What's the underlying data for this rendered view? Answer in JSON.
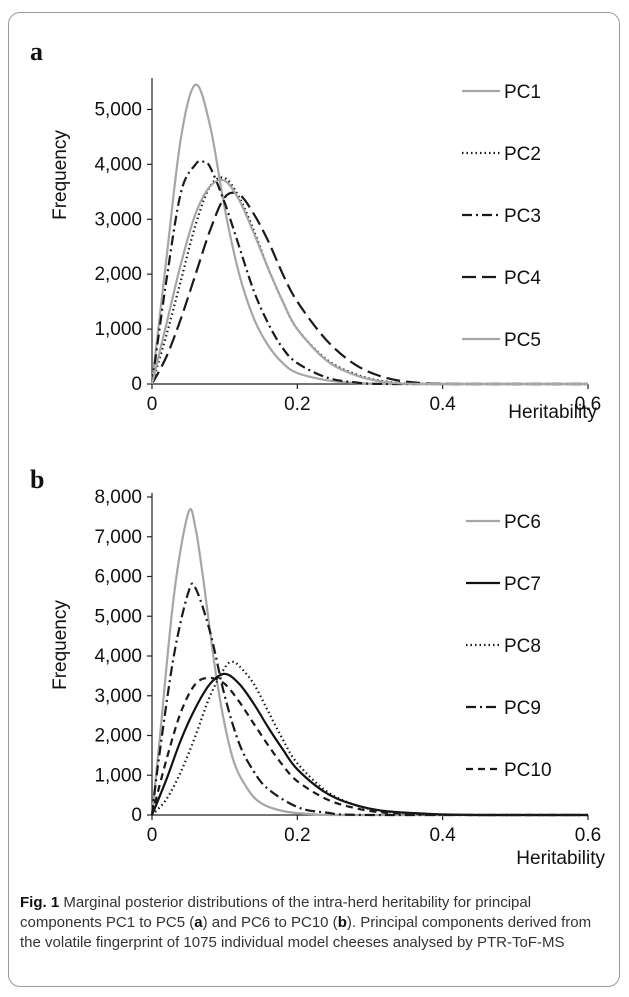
{
  "chart_data": [
    {
      "type": "line",
      "panel_label": "a",
      "xlabel": "Heritability",
      "ylabel": "Frequency",
      "xlim": [
        0,
        0.6
      ],
      "ylim": [
        0,
        5500
      ],
      "x_ticks": [
        "0",
        "0.2",
        "0.4",
        "0.6"
      ],
      "y_ticks": [
        "0",
        "1,000",
        "2,000",
        "3,000",
        "4,000",
        "5,000"
      ],
      "legend_position": "right",
      "series": [
        {
          "name": "PC1",
          "color": "#a6a6a6",
          "dash": "solid",
          "x": [
            0,
            0.02,
            0.04,
            0.06,
            0.08,
            0.1,
            0.12,
            0.14,
            0.16,
            0.18,
            0.2,
            0.24,
            0.28,
            0.35,
            0.6
          ],
          "y": [
            0,
            2300,
            4500,
            5450,
            4700,
            3200,
            2000,
            1200,
            700,
            380,
            200,
            70,
            20,
            0,
            0
          ]
        },
        {
          "name": "PC2",
          "color": "#1a1a1a",
          "dash": "dotted",
          "x": [
            0,
            0.02,
            0.04,
            0.06,
            0.08,
            0.1,
            0.12,
            0.14,
            0.16,
            0.18,
            0.2,
            0.24,
            0.28,
            0.32,
            0.38,
            0.6
          ],
          "y": [
            0,
            900,
            1900,
            2900,
            3600,
            3750,
            3400,
            2800,
            2100,
            1500,
            1000,
            450,
            180,
            50,
            0,
            0
          ]
        },
        {
          "name": "PC3",
          "color": "#1a1a1a",
          "dash": "dashdot",
          "x": [
            0,
            0.02,
            0.04,
            0.06,
            0.07,
            0.08,
            0.1,
            0.12,
            0.14,
            0.16,
            0.18,
            0.2,
            0.24,
            0.28,
            0.33,
            0.6
          ],
          "y": [
            0,
            1900,
            3500,
            4000,
            4050,
            3950,
            3300,
            2500,
            1700,
            1100,
            650,
            380,
            120,
            30,
            0,
            0
          ]
        },
        {
          "name": "PC4",
          "color": "#1a1a1a",
          "dash": "longdash",
          "x": [
            0,
            0.02,
            0.04,
            0.06,
            0.08,
            0.1,
            0.12,
            0.14,
            0.16,
            0.18,
            0.2,
            0.24,
            0.28,
            0.32,
            0.36,
            0.42,
            0.6
          ],
          "y": [
            0,
            500,
            1200,
            2000,
            2800,
            3400,
            3450,
            3100,
            2600,
            2000,
            1500,
            800,
            350,
            120,
            30,
            0,
            0
          ]
        },
        {
          "name": "PC5",
          "color": "#a6a6a6",
          "dash": "solid",
          "x": [
            0,
            0.02,
            0.04,
            0.06,
            0.08,
            0.1,
            0.12,
            0.14,
            0.16,
            0.18,
            0.2,
            0.24,
            0.28,
            0.32,
            0.38,
            0.6
          ],
          "y": [
            0,
            1100,
            2200,
            3100,
            3600,
            3700,
            3350,
            2750,
            2100,
            1500,
            1000,
            430,
            160,
            40,
            0,
            0
          ]
        }
      ]
    },
    {
      "type": "line",
      "panel_label": "b",
      "xlabel": "Heritability",
      "ylabel": "Frequency",
      "xlim": [
        0,
        0.6
      ],
      "ylim": [
        0,
        8000
      ],
      "x_ticks": [
        "0",
        "0.2",
        "0.4",
        "0.6"
      ],
      "y_ticks": [
        "0",
        "1,000",
        "2,000",
        "3,000",
        "4,000",
        "5,000",
        "6,000",
        "7,000",
        "8,000"
      ],
      "legend_position": "right",
      "series": [
        {
          "name": "PC6",
          "color": "#a6a6a6",
          "dash": "solid",
          "x": [
            0,
            0.01,
            0.03,
            0.05,
            0.06,
            0.07,
            0.09,
            0.11,
            0.13,
            0.15,
            0.18,
            0.22,
            0.28,
            0.6
          ],
          "y": [
            0,
            1800,
            5500,
            7600,
            7200,
            6000,
            3300,
            1500,
            700,
            300,
            100,
            20,
            0,
            0
          ]
        },
        {
          "name": "PC7",
          "color": "#111111",
          "dash": "solid",
          "x": [
            0,
            0.02,
            0.04,
            0.06,
            0.08,
            0.1,
            0.12,
            0.14,
            0.16,
            0.18,
            0.2,
            0.24,
            0.28,
            0.32,
            0.38,
            0.45,
            0.6
          ],
          "y": [
            0,
            900,
            1900,
            2700,
            3300,
            3550,
            3300,
            2800,
            2200,
            1650,
            1150,
            550,
            250,
            100,
            30,
            0,
            0
          ]
        },
        {
          "name": "PC8",
          "color": "#1a1a1a",
          "dash": "dotted",
          "x": [
            0,
            0.02,
            0.04,
            0.06,
            0.08,
            0.1,
            0.11,
            0.12,
            0.14,
            0.16,
            0.18,
            0.2,
            0.24,
            0.28,
            0.32,
            0.38,
            0.45,
            0.6
          ],
          "y": [
            0,
            400,
            1100,
            2000,
            3000,
            3700,
            3850,
            3750,
            3300,
            2600,
            1900,
            1300,
            600,
            250,
            90,
            20,
            0,
            0
          ]
        },
        {
          "name": "PC9",
          "color": "#1a1a1a",
          "dash": "dashdot",
          "x": [
            0,
            0.01,
            0.03,
            0.05,
            0.06,
            0.08,
            0.1,
            0.12,
            0.14,
            0.16,
            0.2,
            0.24,
            0.3,
            0.6
          ],
          "y": [
            0,
            1500,
            4000,
            5600,
            5700,
            4600,
            3000,
            1800,
            1100,
            650,
            200,
            60,
            0,
            0
          ]
        },
        {
          "name": "PC10",
          "color": "#1a1a1a",
          "dash": "dashed",
          "x": [
            0,
            0.02,
            0.04,
            0.06,
            0.08,
            0.1,
            0.12,
            0.14,
            0.16,
            0.18,
            0.2,
            0.24,
            0.28,
            0.32,
            0.38,
            0.45,
            0.6
          ],
          "y": [
            0,
            1400,
            2600,
            3300,
            3450,
            3300,
            2850,
            2300,
            1750,
            1250,
            850,
            400,
            170,
            60,
            15,
            0,
            0
          ]
        }
      ]
    }
  ],
  "caption": {
    "label": "Fig. 1",
    "text_1": "  Marginal posterior distributions of the intra-herd heritability for principal components PC1 to PC5 (",
    "bold_a": "a",
    "text_2": ") and PC6 to PC10 (",
    "bold_b": "b",
    "text_3": "). Principal components derived from the volatile fingerprint of 1075 individual model cheeses analysed by PTR-ToF-MS"
  }
}
